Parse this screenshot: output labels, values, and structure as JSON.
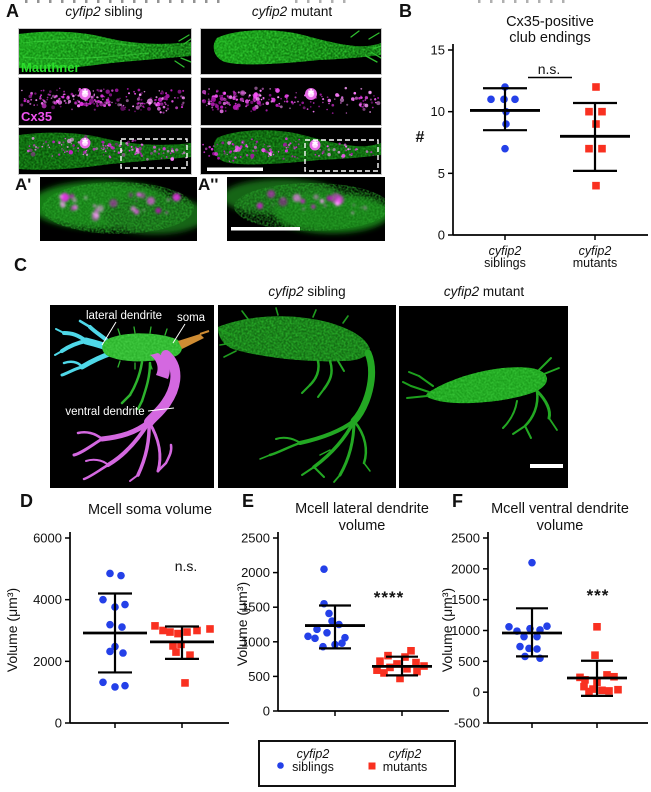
{
  "panels": {
    "A": {
      "label": "A",
      "headers": [
        {
          "gene": "cyfip2",
          "rest": " sibling"
        },
        {
          "gene": "cyfip2",
          "rest": " mutant"
        }
      ],
      "stains": [
        {
          "text": "Mauthner",
          "color": "#2bdf2b"
        },
        {
          "text": "Cx35",
          "color": "#ef52ef"
        }
      ],
      "insets": [
        "A'",
        "A''"
      ],
      "asterisk": "*"
    },
    "B": {
      "label": "B"
    },
    "C": {
      "label": "C",
      "headers": [
        {
          "gene": "cyfip2",
          "rest": " sibling"
        },
        {
          "gene": "cyfip2",
          "rest": " mutant"
        }
      ],
      "annotations": {
        "lateral": "lateral dendrite",
        "soma": "soma",
        "ventral": "ventral dendrite"
      }
    },
    "D": {
      "label": "D"
    },
    "E": {
      "label": "E"
    },
    "F": {
      "label": "F"
    }
  },
  "legend": {
    "items": [
      {
        "gene": "cyfip2",
        "group": "siblings",
        "color": "#2440e8",
        "marker": "circle"
      },
      {
        "gene": "cyfip2",
        "group": "mutants",
        "color": "#f93020",
        "marker": "square"
      }
    ]
  },
  "chart_data": [
    {
      "panel": "B",
      "type": "scatter",
      "title_lines": [
        "Cx35-positive",
        "club endings"
      ],
      "ylabel": "#",
      "ylim": [
        0,
        15
      ],
      "yticks": [
        0,
        5,
        10,
        15
      ],
      "significance": "n.s.",
      "xtick_labels": [
        {
          "line1": "cyfip2",
          "line2": "siblings"
        },
        {
          "line1": "cyfip2",
          "line2": "mutants"
        }
      ],
      "groups": [
        {
          "name": "cyfip2 siblings",
          "marker": "circle",
          "color": "#2440e8",
          "mean": 10.1,
          "err_low": 8.5,
          "err_high": 11.9,
          "points": [
            [
              12,
              0
            ],
            [
              11,
              -14
            ],
            [
              11,
              -1
            ],
            [
              11,
              10
            ],
            [
              10,
              1
            ],
            [
              9,
              1
            ],
            [
              7,
              0
            ]
          ]
        },
        {
          "name": "cyfip2 mutants",
          "marker": "square",
          "color": "#f93020",
          "mean": 8.0,
          "err_low": 5.2,
          "err_high": 10.7,
          "points": [
            [
              12,
              1
            ],
            [
              10,
              -6
            ],
            [
              10,
              7
            ],
            [
              9,
              1
            ],
            [
              7,
              -6
            ],
            [
              7,
              7
            ],
            [
              4,
              1
            ]
          ]
        }
      ]
    },
    {
      "panel": "D",
      "type": "scatter",
      "title_lines": [
        "Mcell soma volume"
      ],
      "ylabel": "Volume (μm³)",
      "ylim": [
        0,
        6000
      ],
      "yticks": [
        0,
        2000,
        4000,
        6000
      ],
      "significance": "n.s.",
      "groups": [
        {
          "name": "cyfip2 siblings",
          "marker": "circle",
          "color": "#2440e8",
          "mean": 2920,
          "err_low": 1640,
          "err_high": 4200,
          "points": [
            [
              4850,
              -5
            ],
            [
              4780,
              6
            ],
            [
              4000,
              -12
            ],
            [
              3840,
              10
            ],
            [
              3760,
              0
            ],
            [
              3190,
              -5
            ],
            [
              3110,
              7
            ],
            [
              2480,
              0
            ],
            [
              2320,
              -5
            ],
            [
              2270,
              8
            ],
            [
              1320,
              -12
            ],
            [
              1210,
              10
            ],
            [
              1170,
              0
            ]
          ]
        },
        {
          "name": "cyfip2 mutants",
          "marker": "square",
          "color": "#f93020",
          "mean": 2630,
          "err_low": 2080,
          "err_high": 3130,
          "points": [
            [
              3150,
              -27
            ],
            [
              3000,
              -19
            ],
            [
              2950,
              -12
            ],
            [
              2900,
              -4
            ],
            [
              2950,
              5
            ],
            [
              3000,
              15
            ],
            [
              3050,
              28
            ],
            [
              2550,
              -1
            ],
            [
              2500,
              -9
            ],
            [
              2300,
              -6
            ],
            [
              2200,
              8
            ],
            [
              1300,
              3
            ]
          ]
        }
      ]
    },
    {
      "panel": "E",
      "type": "scatter",
      "title_lines": [
        "Mcell lateral dendrite",
        "volume"
      ],
      "ylabel": "Volume (μm³)",
      "ylim": [
        0,
        2500
      ],
      "yticks": [
        0,
        500,
        1000,
        1500,
        2000,
        2500
      ],
      "significance": "****",
      "groups": [
        {
          "name": "cyfip2 siblings",
          "marker": "circle",
          "color": "#2440e8",
          "mean": 1235,
          "err_low": 905,
          "err_high": 1525,
          "points": [
            [
              2050,
              -11
            ],
            [
              1550,
              -11
            ],
            [
              1410,
              -6
            ],
            [
              1300,
              -3
            ],
            [
              1250,
              4
            ],
            [
              1180,
              -18
            ],
            [
              1130,
              -8
            ],
            [
              1080,
              -27
            ],
            [
              1060,
              10
            ],
            [
              1050,
              -20
            ],
            [
              980,
              7
            ],
            [
              960,
              0
            ],
            [
              930,
              -12
            ]
          ]
        },
        {
          "name": "cyfip2 mutants",
          "marker": "square",
          "color": "#f93020",
          "mean": 645,
          "err_low": 515,
          "err_high": 785,
          "points": [
            [
              870,
              9
            ],
            [
              800,
              -14
            ],
            [
              780,
              3
            ],
            [
              720,
              -22
            ],
            [
              700,
              14
            ],
            [
              680,
              -5
            ],
            [
              650,
              22
            ],
            [
              630,
              -12
            ],
            [
              610,
              5
            ],
            [
              590,
              -25
            ],
            [
              570,
              15
            ],
            [
              550,
              -18
            ],
            [
              470,
              -2
            ]
          ]
        }
      ]
    },
    {
      "panel": "F",
      "type": "scatter",
      "title_lines": [
        "Mcell ventral dendrite",
        "volume"
      ],
      "ylabel": "Volume (μm³)",
      "ylim": [
        -500,
        2500
      ],
      "yticks": [
        -500,
        0,
        500,
        1000,
        1500,
        2000,
        2500
      ],
      "significance": "***",
      "groups": [
        {
          "name": "cyfip2 siblings",
          "marker": "circle",
          "color": "#2440e8",
          "mean": 960,
          "err_low": 580,
          "err_high": 1360,
          "points": [
            [
              2100,
              0
            ],
            [
              1070,
              15
            ],
            [
              1060,
              -23
            ],
            [
              1030,
              -2
            ],
            [
              1010,
              8
            ],
            [
              990,
              -15
            ],
            [
              900,
              -8
            ],
            [
              900,
              5
            ],
            [
              740,
              -12
            ],
            [
              710,
              -3
            ],
            [
              700,
              5
            ],
            [
              580,
              -7
            ],
            [
              550,
              8
            ]
          ]
        },
        {
          "name": "cyfip2 mutants",
          "marker": "square",
          "color": "#f93020",
          "mean": 230,
          "err_low": -60,
          "err_high": 510,
          "points": [
            [
              1060,
              0
            ],
            [
              600,
              -2
            ],
            [
              280,
              10
            ],
            [
              250,
              17
            ],
            [
              240,
              -17
            ],
            [
              200,
              -12
            ],
            [
              160,
              0
            ],
            [
              90,
              -13
            ],
            [
              50,
              -4
            ],
            [
              40,
              21
            ],
            [
              30,
              5
            ],
            [
              20,
              12
            ],
            [
              10,
              -8
            ]
          ]
        }
      ]
    }
  ]
}
